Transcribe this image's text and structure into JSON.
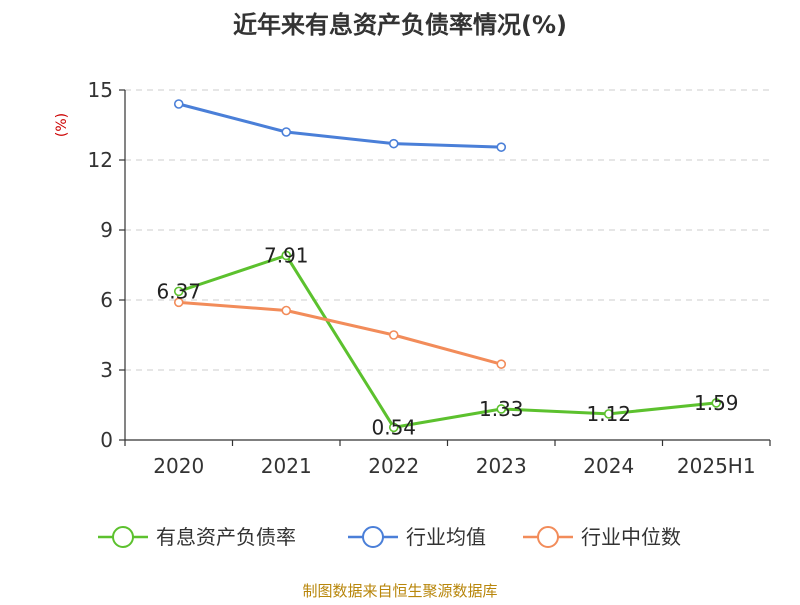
{
  "title": "近年来有息资产负债率情况(%)",
  "source": "制图数据来自恒生聚源数据库",
  "chart_data": {
    "type": "line",
    "title": "近年来有息资产负债率情况(%)",
    "ylabel": "(%)",
    "xlabel": "",
    "categories": [
      "2020",
      "2021",
      "2022",
      "2023",
      "2024",
      "2025H1"
    ],
    "ylim": [
      0,
      15
    ],
    "yticks": [
      0,
      3,
      6,
      9,
      12,
      15
    ],
    "grid": true,
    "legend_position": "bottom",
    "series": [
      {
        "name": "有息资产负债率",
        "color": "#5cc12e",
        "values": [
          6.37,
          7.91,
          0.54,
          1.33,
          1.12,
          1.59
        ],
        "labels": [
          "6.37",
          "7.91",
          "0.54",
          "1.33",
          "1.12",
          "1.59"
        ]
      },
      {
        "name": "行业均值",
        "color": "#4a7fd8",
        "values": [
          14.4,
          13.2,
          12.7,
          12.55,
          null,
          null
        ]
      },
      {
        "name": "行业中位数",
        "color": "#f28c5a",
        "values": [
          5.9,
          5.55,
          4.5,
          3.25,
          null,
          null
        ]
      }
    ]
  }
}
